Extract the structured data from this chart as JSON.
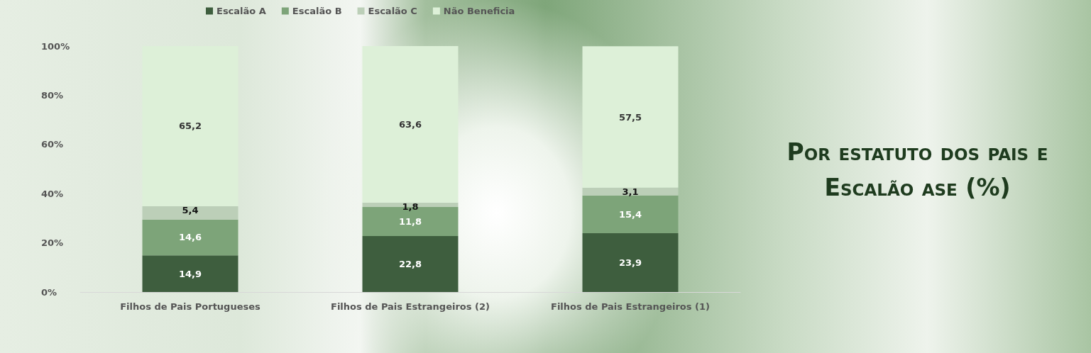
{
  "chart_data": {
    "type": "bar",
    "title": "Por estatuto dos pais e Escalão ase (%)",
    "categories": [
      "Filhos de Pais Portugueses",
      "Filhos de Pais Estrangeiros (2)",
      "Filhos de Pais Estrangeiros (1)"
    ],
    "stacked": true,
    "ylim": [
      0,
      100
    ],
    "yticks": [
      {
        "value": 0,
        "label": "0%"
      },
      {
        "value": 20,
        "label": "20%"
      },
      {
        "value": 40,
        "label": "40%"
      },
      {
        "value": 60,
        "label": "60%"
      },
      {
        "value": 80,
        "label": "80%"
      },
      {
        "value": 100,
        "label": "100%"
      }
    ],
    "series": [
      {
        "name": "Escalão A",
        "color": "#3e5e3e",
        "values": [
          14.9,
          22.8,
          23.9
        ],
        "value_labels": [
          "14,9",
          "22,8",
          "23,9"
        ]
      },
      {
        "name": "Escalão B",
        "color": "#7da479",
        "values": [
          14.6,
          11.8,
          15.4
        ],
        "value_labels": [
          "14,6",
          "11,8",
          "15,4"
        ]
      },
      {
        "name": "Escalão C",
        "color": "#bccfb8",
        "values": [
          5.4,
          1.8,
          3.1
        ],
        "value_labels": [
          "5,4",
          "1,8",
          "3,1"
        ]
      },
      {
        "name": "Não Beneficia",
        "color": "#ddf0d8",
        "values": [
          65.2,
          63.6,
          57.5
        ],
        "value_labels": [
          "65,2",
          "63,6",
          "57,5"
        ]
      }
    ],
    "grid": false,
    "legend": "top"
  }
}
